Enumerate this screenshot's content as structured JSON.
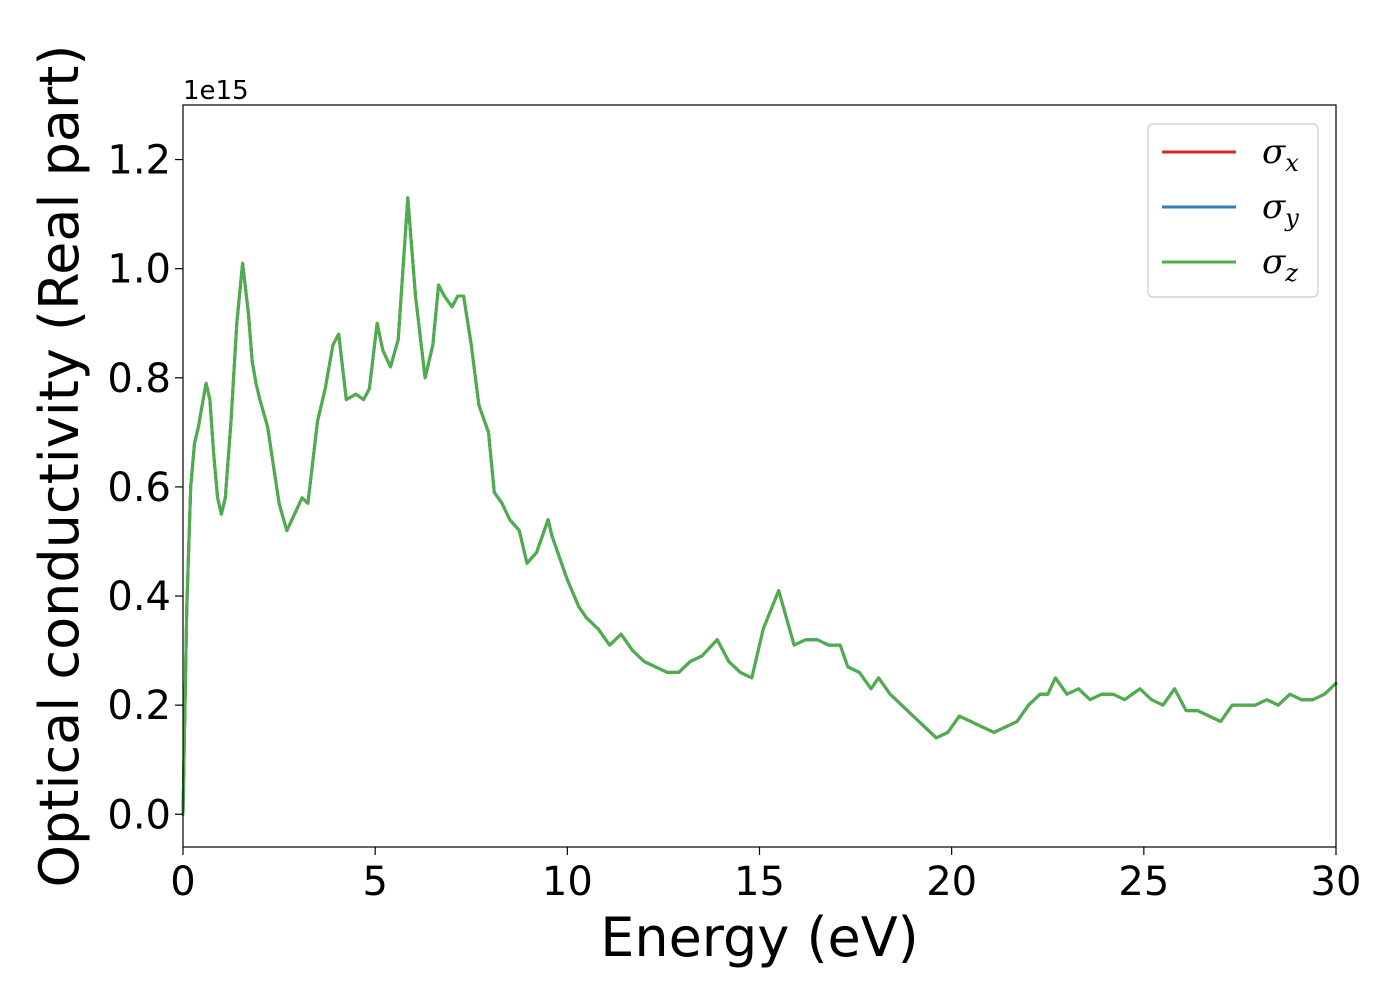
{
  "chart_data": {
    "type": "line",
    "xlabel": "Energy (eV)",
    "ylabel": "Optical conductivity (Real part)",
    "y_offset_label": "1e15",
    "xlim": [
      0,
      30
    ],
    "ylim": [
      -0.06,
      1.3
    ],
    "x_ticks": [
      0,
      5,
      10,
      15,
      20,
      25,
      30
    ],
    "x_tick_labels": [
      "0",
      "5",
      "10",
      "15",
      "20",
      "25",
      "30"
    ],
    "y_ticks": [
      0.0,
      0.2,
      0.4,
      0.6,
      0.8,
      1.0,
      1.2
    ],
    "y_tick_labels": [
      "0.0",
      "0.2",
      "0.4",
      "0.6",
      "0.8",
      "1.0",
      "1.2"
    ],
    "grid": false,
    "legend_position": "top-right",
    "series": [
      {
        "name": "σx",
        "symbol": "σ",
        "subscript": "x",
        "color": "#d62728",
        "x": [
          0,
          0.1,
          0.2,
          0.3,
          0.4,
          0.5,
          0.6,
          0.7,
          0.8,
          0.9,
          1.0,
          1.1,
          1.25,
          1.4,
          1.55,
          1.7,
          1.8,
          1.9,
          2.0,
          2.2,
          2.5,
          2.7,
          2.9,
          3.1,
          3.25,
          3.5,
          3.7,
          3.9,
          4.05,
          4.25,
          4.5,
          4.7,
          4.85,
          5.05,
          5.2,
          5.4,
          5.6,
          5.85,
          6.05,
          6.3,
          6.5,
          6.65,
          6.8,
          7.0,
          7.15,
          7.3,
          7.5,
          7.7,
          7.95,
          8.1,
          8.3,
          8.5,
          8.75,
          8.95,
          9.2,
          9.5,
          9.6,
          9.8,
          10.0,
          10.3,
          10.5,
          10.8,
          11.1,
          11.4,
          11.7,
          12.0,
          12.3,
          12.6,
          12.9,
          13.2,
          13.5,
          13.9,
          14.2,
          14.5,
          14.8,
          15.1,
          15.5,
          15.9,
          16.2,
          16.5,
          16.8,
          17.1,
          17.3,
          17.6,
          17.9,
          18.1,
          18.4,
          18.7,
          19.0,
          19.3,
          19.6,
          19.9,
          20.2,
          20.5,
          20.8,
          21.1,
          21.4,
          21.7,
          22.0,
          22.3,
          22.5,
          22.7,
          23.0,
          23.3,
          23.6,
          23.9,
          24.2,
          24.5,
          24.7,
          24.9,
          25.2,
          25.5,
          25.8,
          26.1,
          26.4,
          26.7,
          27.0,
          27.3,
          27.6,
          27.9,
          28.2,
          28.5,
          28.8,
          29.1,
          29.4,
          29.7,
          30.0
        ],
        "y": [
          0,
          0.38,
          0.6,
          0.68,
          0.71,
          0.75,
          0.79,
          0.76,
          0.66,
          0.58,
          0.55,
          0.58,
          0.72,
          0.9,
          1.01,
          0.92,
          0.83,
          0.79,
          0.76,
          0.71,
          0.57,
          0.52,
          0.55,
          0.58,
          0.57,
          0.72,
          0.78,
          0.86,
          0.88,
          0.76,
          0.77,
          0.76,
          0.78,
          0.9,
          0.85,
          0.82,
          0.87,
          1.13,
          0.95,
          0.8,
          0.86,
          0.97,
          0.95,
          0.93,
          0.95,
          0.95,
          0.86,
          0.75,
          0.7,
          0.59,
          0.57,
          0.54,
          0.52,
          0.46,
          0.48,
          0.54,
          0.51,
          0.47,
          0.43,
          0.38,
          0.36,
          0.34,
          0.31,
          0.33,
          0.3,
          0.28,
          0.27,
          0.26,
          0.26,
          0.28,
          0.29,
          0.32,
          0.28,
          0.26,
          0.25,
          0.34,
          0.41,
          0.31,
          0.32,
          0.32,
          0.31,
          0.31,
          0.27,
          0.26,
          0.23,
          0.25,
          0.22,
          0.2,
          0.18,
          0.16,
          0.14,
          0.15,
          0.18,
          0.17,
          0.16,
          0.15,
          0.16,
          0.17,
          0.2,
          0.22,
          0.22,
          0.25,
          0.22,
          0.23,
          0.21,
          0.22,
          0.22,
          0.21,
          0.22,
          0.23,
          0.21,
          0.2,
          0.23,
          0.19,
          0.19,
          0.18,
          0.17,
          0.2,
          0.2,
          0.2,
          0.21,
          0.2,
          0.22,
          0.21,
          0.21,
          0.22,
          0.24
        ]
      },
      {
        "name": "σy",
        "symbol": "σ",
        "subscript": "y",
        "color": "#377eb8",
        "x": [
          0,
          0.1,
          0.2,
          0.3,
          0.4,
          0.5,
          0.6,
          0.7,
          0.8,
          0.9,
          1.0,
          1.1,
          1.25,
          1.4,
          1.55,
          1.7,
          1.8,
          1.9,
          2.0,
          2.2,
          2.5,
          2.7,
          2.9,
          3.1,
          3.25,
          3.5,
          3.7,
          3.9,
          4.05,
          4.25,
          4.5,
          4.7,
          4.85,
          5.05,
          5.2,
          5.4,
          5.6,
          5.85,
          6.05,
          6.3,
          6.5,
          6.65,
          6.8,
          7.0,
          7.15,
          7.3,
          7.5,
          7.7,
          7.95,
          8.1,
          8.3,
          8.5,
          8.75,
          8.95,
          9.2,
          9.5,
          9.6,
          9.8,
          10.0,
          10.3,
          10.5,
          10.8,
          11.1,
          11.4,
          11.7,
          12.0,
          12.3,
          12.6,
          12.9,
          13.2,
          13.5,
          13.9,
          14.2,
          14.5,
          14.8,
          15.1,
          15.5,
          15.9,
          16.2,
          16.5,
          16.8,
          17.1,
          17.3,
          17.6,
          17.9,
          18.1,
          18.4,
          18.7,
          19.0,
          19.3,
          19.6,
          19.9,
          20.2,
          20.5,
          20.8,
          21.1,
          21.4,
          21.7,
          22.0,
          22.3,
          22.5,
          22.7,
          23.0,
          23.3,
          23.6,
          23.9,
          24.2,
          24.5,
          24.7,
          24.9,
          25.2,
          25.5,
          25.8,
          26.1,
          26.4,
          26.7,
          27.0,
          27.3,
          27.6,
          27.9,
          28.2,
          28.5,
          28.8,
          29.1,
          29.4,
          29.7,
          30.0
        ],
        "y": [
          0,
          0.38,
          0.6,
          0.68,
          0.71,
          0.75,
          0.79,
          0.76,
          0.66,
          0.58,
          0.55,
          0.58,
          0.72,
          0.9,
          1.01,
          0.92,
          0.83,
          0.79,
          0.76,
          0.71,
          0.57,
          0.52,
          0.55,
          0.58,
          0.57,
          0.72,
          0.78,
          0.86,
          0.88,
          0.76,
          0.77,
          0.76,
          0.78,
          0.9,
          0.85,
          0.82,
          0.87,
          1.13,
          0.95,
          0.8,
          0.86,
          0.97,
          0.95,
          0.93,
          0.95,
          0.95,
          0.86,
          0.75,
          0.7,
          0.59,
          0.57,
          0.54,
          0.52,
          0.46,
          0.48,
          0.54,
          0.51,
          0.47,
          0.43,
          0.38,
          0.36,
          0.34,
          0.31,
          0.33,
          0.3,
          0.28,
          0.27,
          0.26,
          0.26,
          0.28,
          0.29,
          0.32,
          0.28,
          0.26,
          0.25,
          0.34,
          0.41,
          0.31,
          0.32,
          0.32,
          0.31,
          0.31,
          0.27,
          0.26,
          0.23,
          0.25,
          0.22,
          0.2,
          0.18,
          0.16,
          0.14,
          0.15,
          0.18,
          0.17,
          0.16,
          0.15,
          0.16,
          0.17,
          0.2,
          0.22,
          0.22,
          0.25,
          0.22,
          0.23,
          0.21,
          0.22,
          0.22,
          0.21,
          0.22,
          0.23,
          0.21,
          0.2,
          0.23,
          0.19,
          0.19,
          0.18,
          0.17,
          0.2,
          0.2,
          0.2,
          0.21,
          0.2,
          0.22,
          0.21,
          0.21,
          0.22,
          0.24
        ]
      },
      {
        "name": "σz",
        "symbol": "σ",
        "subscript": "z",
        "color": "#4daf4a",
        "x": [
          0,
          0.1,
          0.2,
          0.3,
          0.4,
          0.5,
          0.6,
          0.7,
          0.8,
          0.9,
          1.0,
          1.1,
          1.25,
          1.4,
          1.55,
          1.7,
          1.8,
          1.9,
          2.0,
          2.2,
          2.5,
          2.7,
          2.9,
          3.1,
          3.25,
          3.5,
          3.7,
          3.9,
          4.05,
          4.25,
          4.5,
          4.7,
          4.85,
          5.05,
          5.2,
          5.4,
          5.6,
          5.85,
          6.05,
          6.3,
          6.5,
          6.65,
          6.8,
          7.0,
          7.15,
          7.3,
          7.5,
          7.7,
          7.95,
          8.1,
          8.3,
          8.5,
          8.75,
          8.95,
          9.2,
          9.5,
          9.6,
          9.8,
          10.0,
          10.3,
          10.5,
          10.8,
          11.1,
          11.4,
          11.7,
          12.0,
          12.3,
          12.6,
          12.9,
          13.2,
          13.5,
          13.9,
          14.2,
          14.5,
          14.8,
          15.1,
          15.5,
          15.9,
          16.2,
          16.5,
          16.8,
          17.1,
          17.3,
          17.6,
          17.9,
          18.1,
          18.4,
          18.7,
          19.0,
          19.3,
          19.6,
          19.9,
          20.2,
          20.5,
          20.8,
          21.1,
          21.4,
          21.7,
          22.0,
          22.3,
          22.5,
          22.7,
          23.0,
          23.3,
          23.6,
          23.9,
          24.2,
          24.5,
          24.7,
          24.9,
          25.2,
          25.5,
          25.8,
          26.1,
          26.4,
          26.7,
          27.0,
          27.3,
          27.6,
          27.9,
          28.2,
          28.5,
          28.8,
          29.1,
          29.4,
          29.7,
          30.0
        ],
        "y": [
          0,
          0.38,
          0.6,
          0.68,
          0.71,
          0.75,
          0.79,
          0.76,
          0.66,
          0.58,
          0.55,
          0.58,
          0.72,
          0.9,
          1.01,
          0.92,
          0.83,
          0.79,
          0.76,
          0.71,
          0.57,
          0.52,
          0.55,
          0.58,
          0.57,
          0.72,
          0.78,
          0.86,
          0.88,
          0.76,
          0.77,
          0.76,
          0.78,
          0.9,
          0.85,
          0.82,
          0.87,
          1.13,
          0.95,
          0.8,
          0.86,
          0.97,
          0.95,
          0.93,
          0.95,
          0.95,
          0.86,
          0.75,
          0.7,
          0.59,
          0.57,
          0.54,
          0.52,
          0.46,
          0.48,
          0.54,
          0.51,
          0.47,
          0.43,
          0.38,
          0.36,
          0.34,
          0.31,
          0.33,
          0.3,
          0.28,
          0.27,
          0.26,
          0.26,
          0.28,
          0.29,
          0.32,
          0.28,
          0.26,
          0.25,
          0.34,
          0.41,
          0.31,
          0.32,
          0.32,
          0.31,
          0.31,
          0.27,
          0.26,
          0.23,
          0.25,
          0.22,
          0.2,
          0.18,
          0.16,
          0.14,
          0.15,
          0.18,
          0.17,
          0.16,
          0.15,
          0.16,
          0.17,
          0.2,
          0.22,
          0.22,
          0.25,
          0.22,
          0.23,
          0.21,
          0.22,
          0.22,
          0.21,
          0.22,
          0.23,
          0.21,
          0.2,
          0.23,
          0.19,
          0.19,
          0.18,
          0.17,
          0.2,
          0.2,
          0.2,
          0.21,
          0.2,
          0.22,
          0.21,
          0.21,
          0.22,
          0.24
        ]
      }
    ]
  }
}
